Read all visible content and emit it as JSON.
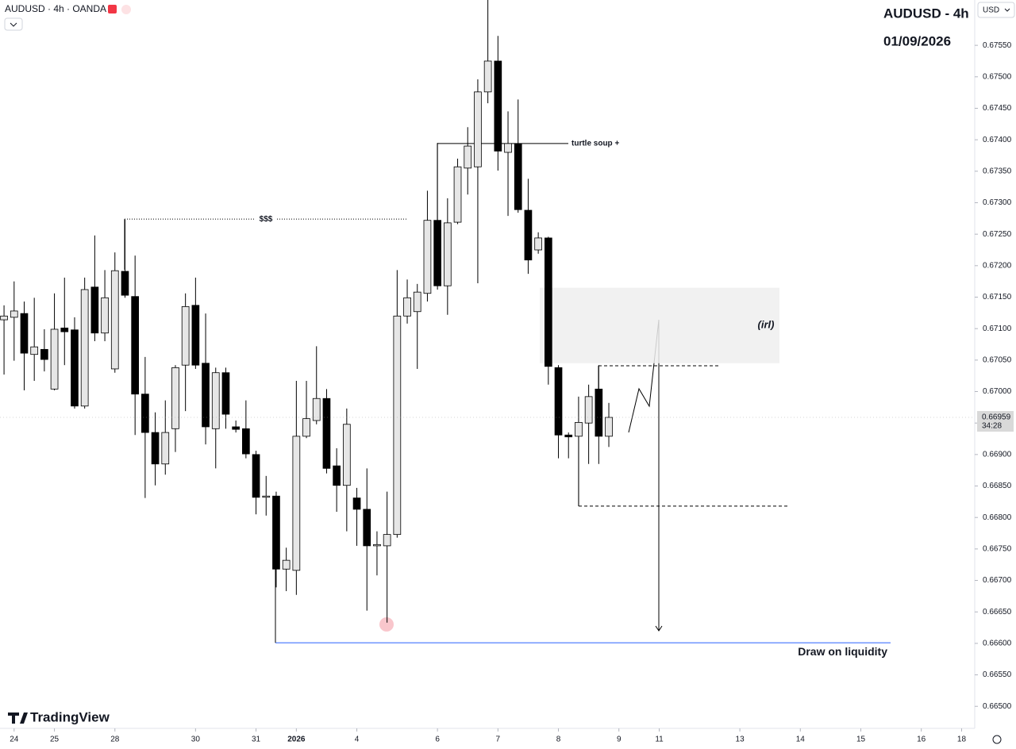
{
  "header": {
    "symbol": "AUDUSD · 4h · OANDA",
    "currency": "USD",
    "brand": "TradingView"
  },
  "chart_data": {
    "type": "candlestick",
    "title": "AUDUSD - 4h",
    "subtitle": "01/09/2026",
    "up_color": "#e6e6e6",
    "down_color": "#000000",
    "ohlc": [
      [
        0.67114,
        0.67137,
        0.67027,
        0.6712
      ],
      [
        0.67118,
        0.67175,
        0.67049,
        0.67128
      ],
      [
        0.67124,
        0.67143,
        0.67002,
        0.67061
      ],
      [
        0.67059,
        0.67149,
        0.67017,
        0.67071
      ],
      [
        0.67067,
        0.67099,
        0.67032,
        0.67051
      ],
      [
        0.67004,
        0.67156,
        0.67002,
        0.67099
      ],
      [
        0.67101,
        0.67181,
        0.67042,
        0.67095
      ],
      [
        0.67098,
        0.67118,
        0.66973,
        0.66977
      ],
      [
        0.66977,
        0.67181,
        0.66973,
        0.67162
      ],
      [
        0.67166,
        0.67248,
        0.6708,
        0.67093
      ],
      [
        0.67093,
        0.67193,
        0.6708,
        0.67149
      ],
      [
        0.67036,
        0.67221,
        0.6703,
        0.67192
      ],
      [
        0.67191,
        0.67273,
        0.67149,
        0.67153
      ],
      [
        0.67151,
        0.67216,
        0.66931,
        0.66996
      ],
      [
        0.66996,
        0.67055,
        0.66831,
        0.66935
      ],
      [
        0.66935,
        0.66967,
        0.66851,
        0.66885
      ],
      [
        0.66885,
        0.66986,
        0.66868,
        0.66935
      ],
      [
        0.66941,
        0.67042,
        0.66904,
        0.67038
      ],
      [
        0.67042,
        0.67156,
        0.66969,
        0.67135
      ],
      [
        0.67137,
        0.67181,
        0.67036,
        0.67042
      ],
      [
        0.67045,
        0.67124,
        0.66916,
        0.66944
      ],
      [
        0.66941,
        0.67038,
        0.66878,
        0.6703
      ],
      [
        0.6703,
        0.67038,
        0.66941,
        0.66964
      ],
      [
        0.66944,
        0.66954,
        0.66935,
        0.6694
      ],
      [
        0.66941,
        0.66986,
        0.66894,
        0.66901
      ],
      [
        0.669,
        0.66906,
        0.66805,
        0.66832
      ],
      [
        0.66833,
        0.66866,
        0.66803,
        0.66834
      ],
      [
        0.66834,
        0.66841,
        0.66689,
        0.66718
      ],
      [
        0.66718,
        0.66752,
        0.66683,
        0.66732
      ],
      [
        0.66716,
        0.67017,
        0.66677,
        0.66929
      ],
      [
        0.66929,
        0.67017,
        0.66926,
        0.66957
      ],
      [
        0.66954,
        0.67072,
        0.66948,
        0.66989
      ],
      [
        0.66989,
        0.67004,
        0.6687,
        0.66878
      ],
      [
        0.66882,
        0.6691,
        0.66809,
        0.66851
      ],
      [
        0.66851,
        0.66973,
        0.66778,
        0.66948
      ],
      [
        0.66831,
        0.66847,
        0.66755,
        0.66813
      ],
      [
        0.66813,
        0.66878,
        0.66652,
        0.66755
      ],
      [
        0.66755,
        0.66778,
        0.66708,
        0.66757
      ],
      [
        0.66755,
        0.66841,
        0.66633,
        0.66773
      ],
      [
        0.66773,
        0.67193,
        0.66768,
        0.6712
      ],
      [
        0.6712,
        0.67178,
        0.67108,
        0.67149
      ],
      [
        0.67127,
        0.67171,
        0.67036,
        0.67158
      ],
      [
        0.67156,
        0.67319,
        0.67143,
        0.67272
      ],
      [
        0.67272,
        0.67395,
        0.67162,
        0.67168
      ],
      [
        0.67168,
        0.67307,
        0.67122,
        0.67268
      ],
      [
        0.67269,
        0.6737,
        0.67266,
        0.67357
      ],
      [
        0.67355,
        0.6742,
        0.67313,
        0.6739
      ],
      [
        0.67357,
        0.67496,
        0.67172,
        0.67476
      ],
      [
        0.67476,
        0.67622,
        0.67458,
        0.67525
      ],
      [
        0.67525,
        0.67565,
        0.67351,
        0.67382
      ],
      [
        0.6738,
        0.67445,
        0.67279,
        0.67394
      ],
      [
        0.67394,
        0.67464,
        0.67284,
        0.67289
      ],
      [
        0.67288,
        0.67338,
        0.67187,
        0.67209
      ],
      [
        0.67225,
        0.67253,
        0.67219,
        0.67244
      ],
      [
        0.67244,
        0.67246,
        0.67011,
        0.6704
      ],
      [
        0.67038,
        0.67042,
        0.66894,
        0.66931
      ],
      [
        0.66931,
        0.66935,
        0.66894,
        0.66928
      ],
      [
        0.66929,
        0.66992,
        0.66818,
        0.66951
      ],
      [
        0.6695,
        0.67011,
        0.66885,
        0.66992
      ],
      [
        0.67004,
        0.67042,
        0.66885,
        0.66929
      ],
      [
        0.66929,
        0.66982,
        0.66912,
        0.66959
      ]
    ],
    "xlim": [
      -0.4,
      96.3
    ],
    "xticks": [
      {
        "value": 1,
        "label": "24"
      },
      {
        "value": 5,
        "label": "25"
      },
      {
        "value": 11,
        "label": "28"
      },
      {
        "value": 19,
        "label": "30"
      },
      {
        "value": 25,
        "label": "31"
      },
      {
        "value": 29,
        "label": "2026"
      },
      {
        "value": 35,
        "label": "4"
      },
      {
        "value": 43,
        "label": "6"
      },
      {
        "value": 49,
        "label": "7"
      },
      {
        "value": 55,
        "label": "8"
      },
      {
        "value": 61,
        "label": "9"
      },
      {
        "value": 65,
        "label": "11"
      },
      {
        "value": 73,
        "label": "13"
      },
      {
        "value": 79,
        "label": "14"
      },
      {
        "value": 85,
        "label": "15"
      },
      {
        "value": 91,
        "label": "16"
      },
      {
        "value": 95,
        "label": "18"
      }
    ],
    "ylim": [
      0.66465,
      0.67622
    ],
    "yticks": [
      {
        "value": 0.665,
        "label": "0.66500"
      },
      {
        "value": 0.6655,
        "label": "0.66550"
      },
      {
        "value": 0.666,
        "label": "0.66600"
      },
      {
        "value": 0.6665,
        "label": "0.66650"
      },
      {
        "value": 0.667,
        "label": "0.66700"
      },
      {
        "value": 0.6675,
        "label": "0.66750"
      },
      {
        "value": 0.668,
        "label": "0.66800"
      },
      {
        "value": 0.6685,
        "label": "0.66850"
      },
      {
        "value": 0.669,
        "label": "0.66900"
      },
      {
        "value": 0.6695,
        "label": "0.66950"
      },
      {
        "value": 0.67,
        "label": "0.67000"
      },
      {
        "value": 0.6705,
        "label": "0.67050"
      },
      {
        "value": 0.671,
        "label": "0.67100"
      },
      {
        "value": 0.6715,
        "label": "0.67150"
      },
      {
        "value": 0.672,
        "label": "0.67200"
      },
      {
        "value": 0.6725,
        "label": "0.67250"
      },
      {
        "value": 0.673,
        "label": "0.67300"
      },
      {
        "value": 0.6735,
        "label": "0.67350"
      },
      {
        "value": 0.674,
        "label": "0.67400"
      },
      {
        "value": 0.6745,
        "label": "0.67450"
      },
      {
        "value": 0.675,
        "label": "0.67500"
      },
      {
        "value": 0.6755,
        "label": "0.67550"
      }
    ],
    "last_price": 0.66959,
    "countdown": "34:28",
    "annotations": [
      {
        "text": "turtle soup +",
        "price": 0.67394
      },
      {
        "text": "$$$",
        "price": 0.67274
      },
      {
        "text": "Draw on liquidity",
        "price": 0.66601
      }
    ],
    "zone": {
      "label": "(irl)",
      "range": [
        0.67045,
        0.67165
      ]
    },
    "levels": [
      0.67041,
      0.66818
    ]
  }
}
